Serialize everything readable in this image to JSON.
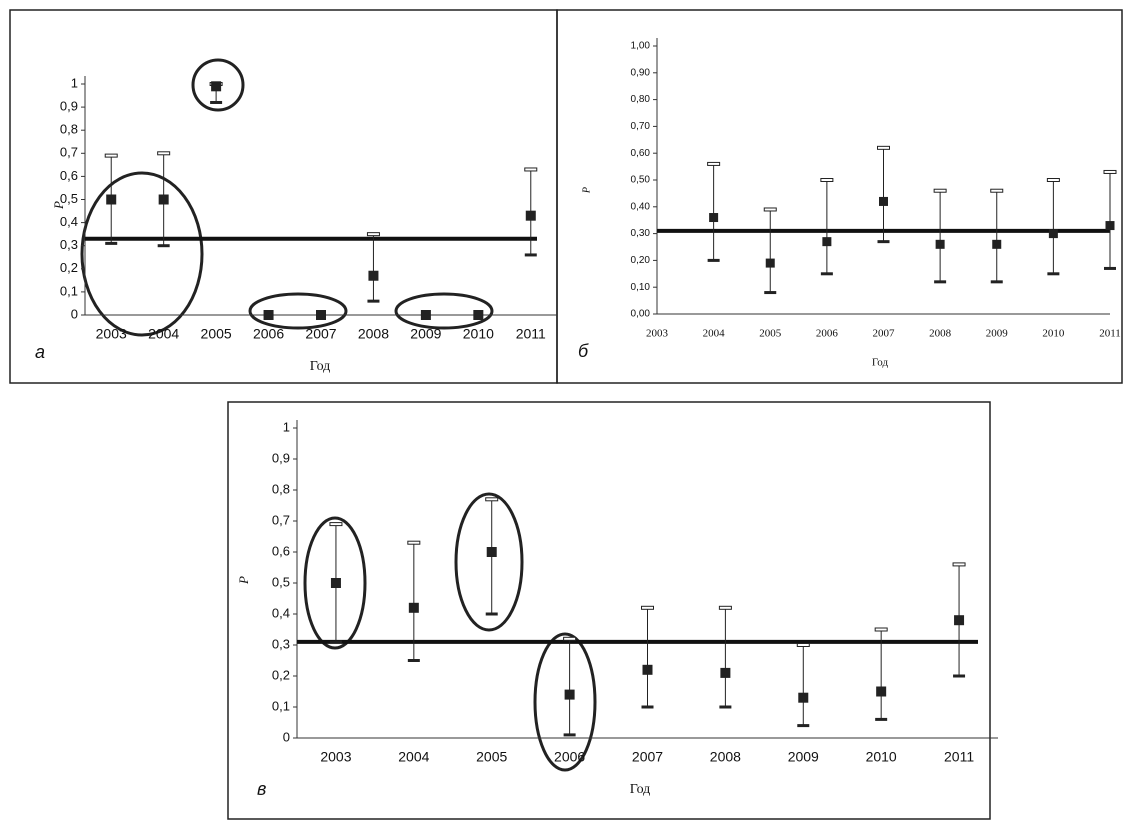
{
  "chart_data": [
    {
      "type": "scatter",
      "panel_label": "а",
      "x_label": "Год",
      "y_label": "P",
      "categories": [
        "2003",
        "2004",
        "2005",
        "2006",
        "2007",
        "2008",
        "2009",
        "2010",
        "2011"
      ],
      "values": [
        0.5,
        0.5,
        0.99,
        0,
        0,
        0.17,
        0,
        0,
        0.43
      ],
      "ci_low": [
        0.31,
        0.3,
        0.92,
        null,
        null,
        0.06,
        null,
        null,
        0.26
      ],
      "ci_high": [
        0.69,
        0.7,
        1.0,
        null,
        null,
        0.35,
        null,
        null,
        0.63
      ],
      "ref_line": 0.33,
      "color": "#222222",
      "ylim": [
        0,
        1
      ],
      "yticks": [
        0,
        {
          "value": 0.1,
          "label": "0,1"
        },
        {
          "value": 0.2,
          "label": "0,2"
        },
        {
          "value": 0.3,
          "label": "0,3"
        },
        {
          "value": 0.4,
          "label": "0,4"
        },
        {
          "value": 0.5,
          "label": "0,5"
        },
        {
          "value": 0.6,
          "label": "0,6"
        },
        {
          "value": 0.7,
          "label": "0,7"
        },
        {
          "value": 0.8,
          "label": "0,8"
        },
        {
          "value": 0.9,
          "label": "0,9"
        },
        1
      ]
    },
    {
      "type": "scatter",
      "panel_label": "б",
      "x_label": "Год",
      "y_label": "P",
      "categories": [
        "2003",
        "2004",
        "2005",
        "2006",
        "2007",
        "2008",
        "2009",
        "2010",
        "2011"
      ],
      "values": [
        null,
        0.36,
        0.19,
        0.27,
        0.42,
        0.26,
        0.26,
        0.3,
        0.33
      ],
      "ci_low": [
        null,
        0.2,
        0.08,
        0.15,
        0.27,
        0.12,
        0.12,
        0.15,
        0.17
      ],
      "ci_high": [
        null,
        0.56,
        0.39,
        0.5,
        0.62,
        0.46,
        0.46,
        0.5,
        0.53
      ],
      "ref_line": 0.31,
      "color": "#222222",
      "ylim": [
        0,
        1
      ],
      "yticks": [
        {
          "value": 0,
          "label": "0,00"
        },
        {
          "value": 0.1,
          "label": "0,10"
        },
        {
          "value": 0.2,
          "label": "0,20"
        },
        {
          "value": 0.3,
          "label": "0,30"
        },
        {
          "value": 0.4,
          "label": "0,40"
        },
        {
          "value": 0.5,
          "label": "0,50"
        },
        {
          "value": 0.6,
          "label": "0,60"
        },
        {
          "value": 0.7,
          "label": "0,70"
        },
        {
          "value": 0.8,
          "label": "0,80"
        },
        {
          "value": 0.9,
          "label": "0,90"
        },
        {
          "value": 1,
          "label": "1,00"
        }
      ]
    },
    {
      "type": "scatter",
      "panel_label": "в",
      "x_label": "Год",
      "y_label": "P",
      "categories": [
        "2003",
        "2004",
        "2005",
        "2006",
        "2007",
        "2008",
        "2009",
        "2010",
        "2011"
      ],
      "values": [
        0.5,
        0.42,
        0.6,
        0.14,
        0.22,
        0.21,
        0.13,
        0.15,
        0.38
      ],
      "ci_low": [
        0.31,
        0.25,
        0.4,
        0.01,
        0.1,
        0.1,
        0.04,
        0.06,
        0.2
      ],
      "ci_high": [
        0.69,
        0.63,
        0.77,
        0.32,
        0.42,
        0.42,
        0.3,
        0.35,
        0.56
      ],
      "ref_line": 0.31,
      "color": "#222222",
      "ylim": [
        0,
        1
      ],
      "yticks": [
        0,
        {
          "value": 0.1,
          "label": "0,1"
        },
        {
          "value": 0.2,
          "label": "0,2"
        },
        {
          "value": 0.3,
          "label": "0,3"
        },
        {
          "value": 0.4,
          "label": "0,4"
        },
        {
          "value": 0.5,
          "label": "0,5"
        },
        {
          "value": 0.6,
          "label": "0,6"
        },
        {
          "value": 0.7,
          "label": "0,7"
        },
        {
          "value": 0.8,
          "label": "0,8"
        },
        {
          "value": 0.9,
          "label": "0,9"
        },
        1
      ]
    }
  ]
}
